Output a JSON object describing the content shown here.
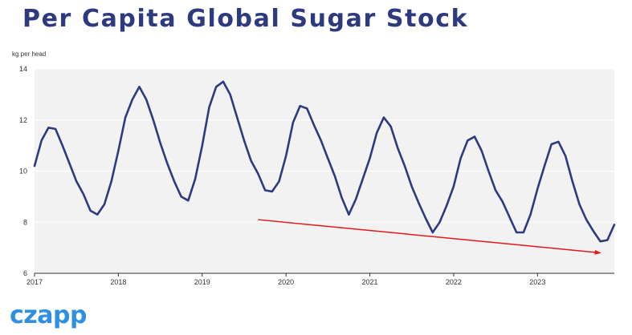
{
  "page_title": "Per Capita Global Sugar Stock",
  "brand": {
    "logo_text": "czapp"
  },
  "colors": {
    "title": "#2e3a80",
    "line": "#2e3a80",
    "trend": "#e0191b",
    "plot_bg": "#f2f2f2",
    "logo": "#2f8fe0"
  },
  "chart_data": {
    "type": "line",
    "title": "Per Capita Global Sugar Stock",
    "ylabel": "kg per head",
    "xlabel": "",
    "ylim": [
      6,
      14
    ],
    "yticks": [
      6,
      8,
      10,
      12,
      14
    ],
    "xlim": [
      "2017-01",
      "2023-12"
    ],
    "xticks": [
      "2017",
      "2018",
      "2019",
      "2020",
      "2021",
      "2022",
      "2023"
    ],
    "grid": "horizontal",
    "series": [
      {
        "x": [
          "2017-01",
          "2017-02",
          "2017-03",
          "2017-04",
          "2017-05",
          "2017-06",
          "2017-07",
          "2017-08",
          "2017-09",
          "2017-10",
          "2017-11",
          "2017-12",
          "2018-01",
          "2018-02",
          "2018-03",
          "2018-04",
          "2018-05",
          "2018-06",
          "2018-07",
          "2018-08",
          "2018-09",
          "2018-10",
          "2018-11",
          "2018-12",
          "2019-01",
          "2019-02",
          "2019-03",
          "2019-04",
          "2019-05",
          "2019-06",
          "2019-07",
          "2019-08",
          "2019-09",
          "2019-10",
          "2019-11",
          "2019-12",
          "2020-01",
          "2020-02",
          "2020-03",
          "2020-04",
          "2020-05",
          "2020-06",
          "2020-07",
          "2020-08",
          "2020-09",
          "2020-10",
          "2020-11",
          "2020-12",
          "2021-01",
          "2021-02",
          "2021-03",
          "2021-04",
          "2021-05",
          "2021-06",
          "2021-07",
          "2021-08",
          "2021-09",
          "2021-10",
          "2021-11",
          "2021-12",
          "2022-01",
          "2022-02",
          "2022-03",
          "2022-04",
          "2022-05",
          "2022-06",
          "2022-07",
          "2022-08",
          "2022-09",
          "2022-10",
          "2022-11",
          "2022-12",
          "2023-01",
          "2023-02",
          "2023-03",
          "2023-04",
          "2023-05",
          "2023-06",
          "2023-07",
          "2023-08",
          "2023-09",
          "2023-10",
          "2023-11",
          "2023-12"
        ],
        "values": [
          10.2,
          11.2,
          11.7,
          11.65,
          11.0,
          10.3,
          9.6,
          9.1,
          8.45,
          8.3,
          8.7,
          9.6,
          10.8,
          12.1,
          12.8,
          13.3,
          12.8,
          12.0,
          11.1,
          10.3,
          9.6,
          9.0,
          8.85,
          9.7,
          11.0,
          12.5,
          13.3,
          13.5,
          13.0,
          12.1,
          11.2,
          10.4,
          9.9,
          9.25,
          9.2,
          9.6,
          10.6,
          11.9,
          12.55,
          12.45,
          11.8,
          11.2,
          10.5,
          9.8,
          8.95,
          8.3,
          8.9,
          9.7,
          10.5,
          11.5,
          12.1,
          11.75,
          10.9,
          10.2,
          9.4,
          8.75,
          8.15,
          7.6,
          8.0,
          8.65,
          9.4,
          10.5,
          11.2,
          11.35,
          10.8,
          10.0,
          9.25,
          8.8,
          8.2,
          7.6,
          7.6,
          8.3,
          9.3,
          10.2,
          11.05,
          11.15,
          10.6,
          9.6,
          8.7,
          8.1,
          7.65,
          7.25,
          7.3,
          7.9
        ]
      }
    ],
    "trend_arrow": {
      "from": {
        "x": "2019-09",
        "y": 8.1
      },
      "to": {
        "x": "2023-10",
        "y": 6.8
      }
    }
  }
}
